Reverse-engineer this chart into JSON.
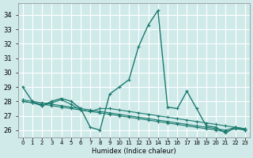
{
  "xlabel": "Humidex (Indice chaleur)",
  "background_color": "#d0eaea",
  "grid_color": "#ffffff",
  "line_color": "#1a7a6e",
  "x_data": [
    0,
    1,
    2,
    3,
    4,
    5,
    6,
    7,
    8,
    9,
    10,
    11,
    12,
    13,
    14,
    15,
    16,
    17,
    18,
    19,
    20,
    21,
    22,
    23
  ],
  "series": [
    [
      29.0,
      28.0,
      27.7,
      28.0,
      28.2,
      28.0,
      27.5,
      26.2,
      26.0,
      28.5,
      29.0,
      29.5,
      31.8,
      33.3,
      34.3,
      27.6,
      27.5,
      28.7,
      27.5,
      26.3,
      26.2,
      25.8,
      26.2,
      26.0
    ],
    [
      28.0,
      27.9,
      27.7,
      27.9,
      28.1,
      27.8,
      27.4,
      27.3,
      27.5,
      27.5,
      27.4,
      27.3,
      27.2,
      27.1,
      27.0,
      26.9,
      26.8,
      26.7,
      26.6,
      26.5,
      26.4,
      26.3,
      26.2,
      26.1
    ],
    [
      28.0,
      27.9,
      27.8,
      27.7,
      27.6,
      27.5,
      27.4,
      27.3,
      27.2,
      27.1,
      27.0,
      26.9,
      26.8,
      26.7,
      26.6,
      26.5,
      26.4,
      26.3,
      26.2,
      26.1,
      26.0,
      25.9,
      26.1,
      26.0
    ],
    [
      28.1,
      28.0,
      27.9,
      27.8,
      27.7,
      27.6,
      27.5,
      27.4,
      27.3,
      27.2,
      27.1,
      27.0,
      26.9,
      26.8,
      26.7,
      26.6,
      26.5,
      26.4,
      26.3,
      26.2,
      26.1,
      26.0,
      26.2,
      26.1
    ]
  ],
  "ylim": [
    25.5,
    34.8
  ],
  "yticks": [
    26,
    27,
    28,
    29,
    30,
    31,
    32,
    33,
    34
  ],
  "xlim": [
    -0.5,
    23.5
  ]
}
